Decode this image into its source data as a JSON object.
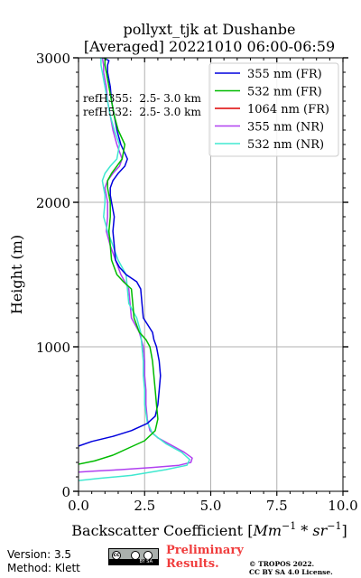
{
  "chart_data": {
    "type": "line",
    "title_line1": "pollyxt_tjk at Dushanbe",
    "title_line2": "[Averaged] 20221010 06:00-06:59",
    "xlabel": "Backscatter Coefficient [Mm⁻¹ * sr⁻¹]",
    "xlabel_parts": {
      "main": "Backscatter Coefficient [",
      "unit1": "Mm",
      "exp1": "−1",
      "mid": " * ",
      "unit2": "sr",
      "exp2": "−1",
      "end": "]"
    },
    "ylabel": "Height (m)",
    "xlim": [
      0,
      10
    ],
    "ylim": [
      0,
      3000
    ],
    "xticks": [
      0,
      2.5,
      5,
      7.5,
      10
    ],
    "xtick_labels": [
      "0.0",
      "2.5",
      "5.0",
      "7.5",
      "10.0"
    ],
    "yticks": [
      0,
      1000,
      2000,
      3000
    ],
    "ytick_labels": [
      "0",
      "1000",
      "2000",
      "3000"
    ],
    "grid": true,
    "legend_position": "top-right",
    "annotations": [
      "refH355:  2.5- 3.0 km",
      "refH532:  2.5- 3.0 km"
    ],
    "series": [
      {
        "name": "355 nm (FR)",
        "color": "#0000dd",
        "x": [
          -0.2,
          0.5,
          1.3,
          2.0,
          2.6,
          2.9,
          3.0,
          3.05,
          3.1,
          3.05,
          3.0,
          2.95,
          2.85,
          2.8,
          2.45,
          2.4,
          2.35,
          2.2,
          1.8,
          1.55,
          1.4,
          1.35,
          1.3,
          1.35,
          1.3,
          1.25,
          1.2,
          1.2,
          1.3,
          1.5,
          1.75,
          1.85,
          1.6,
          1.45,
          1.35,
          1.25,
          1.2,
          1.15,
          1.1,
          1.1,
          1.15,
          0.95,
          0.9
        ],
        "y": [
          300,
          345,
          380,
          420,
          470,
          520,
          600,
          700,
          800,
          900,
          950,
          1000,
          1050,
          1100,
          1200,
          1300,
          1400,
          1450,
          1500,
          1550,
          1600,
          1700,
          1800,
          1900,
          1950,
          2000,
          2050,
          2100,
          2150,
          2200,
          2250,
          2300,
          2400,
          2500,
          2600,
          2700,
          2800,
          2850,
          2900,
          2950,
          2980,
          3000,
          3000
        ]
      },
      {
        "name": "532 nm (FR)",
        "color": "#00bb00",
        "x": [
          -0.2,
          0.6,
          1.3,
          1.9,
          2.5,
          2.9,
          3.0,
          2.95,
          2.9,
          2.85,
          2.8,
          2.75,
          2.7,
          2.55,
          2.3,
          2.1,
          2.05,
          2.0,
          1.7,
          1.45,
          1.25,
          1.2,
          1.15,
          1.2,
          1.2,
          1.15,
          1.1,
          1.1,
          1.25,
          1.45,
          1.65,
          1.75,
          1.5,
          1.35,
          1.25,
          1.15,
          1.1,
          1.05,
          1.0,
          1.0,
          1.05,
          0.9
        ],
        "y": [
          180,
          210,
          250,
          300,
          350,
          420,
          500,
          600,
          700,
          800,
          900,
          950,
          1000,
          1050,
          1100,
          1200,
          1300,
          1400,
          1450,
          1500,
          1600,
          1700,
          1800,
          1900,
          2000,
          2050,
          2100,
          2150,
          2200,
          2250,
          2300,
          2400,
          2500,
          2600,
          2700,
          2800,
          2850,
          2900,
          2950,
          2980,
          3000,
          3000
        ]
      },
      {
        "name": "1064 nm (FR)",
        "color": "#dd0000",
        "x": [],
        "y": []
      },
      {
        "name": "355 nm (NR)",
        "color": "#b040f0",
        "x": [
          -0.2,
          0.6,
          1.6,
          2.8,
          3.8,
          4.25,
          4.3,
          4.0,
          3.5,
          3.0,
          2.7,
          2.6,
          2.55,
          2.55,
          2.5,
          2.5,
          2.45,
          2.3,
          2.0,
          1.95,
          1.9,
          1.6,
          1.4,
          1.2,
          1.05,
          1.1,
          1.1,
          1.05,
          1.0,
          1.1,
          1.3,
          1.55,
          1.65,
          1.45,
          1.3,
          1.2,
          1.1,
          1.05,
          1.0,
          0.95,
          0.95,
          0.9
        ],
        "y": [
          130,
          140,
          150,
          165,
          180,
          200,
          230,
          270,
          320,
          370,
          420,
          500,
          600,
          700,
          800,
          900,
          1000,
          1100,
          1200,
          1300,
          1400,
          1500,
          1600,
          1700,
          1800,
          1900,
          2000,
          2050,
          2100,
          2150,
          2200,
          2250,
          2300,
          2400,
          2500,
          2600,
          2700,
          2800,
          2850,
          2900,
          2950,
          3000
        ]
      },
      {
        "name": "532 nm (NR)",
        "color": "#40e8d0",
        "x": [
          -0.2,
          0.8,
          2.0,
          3.3,
          4.1,
          4.2,
          3.9,
          3.3,
          2.8,
          2.6,
          2.5,
          2.5,
          2.45,
          2.45,
          2.4,
          2.35,
          2.2,
          1.9,
          1.85,
          1.8,
          1.5,
          1.3,
          1.1,
          0.95,
          1.0,
          1.0,
          0.95,
          0.9,
          1.0,
          1.2,
          1.45,
          1.55,
          1.35,
          1.2,
          1.1,
          1.0,
          0.95,
          0.9,
          0.85,
          0.85,
          0.8
        ],
        "y": [
          70,
          90,
          110,
          150,
          180,
          220,
          270,
          330,
          400,
          480,
          600,
          700,
          800,
          900,
          1000,
          1100,
          1200,
          1300,
          1400,
          1500,
          1600,
          1700,
          1800,
          1900,
          2000,
          2050,
          2100,
          2150,
          2200,
          2250,
          2300,
          2400,
          2500,
          2600,
          2700,
          2800,
          2850,
          2900,
          2950,
          3000,
          3000
        ]
      }
    ]
  },
  "footer": {
    "version": "Version: 3.5",
    "method": "Method: Klett",
    "preliminary_line1": "Preliminary",
    "preliminary_line2": "Results.",
    "copyright_line1": "© TROPOS 2022.",
    "copyright_line2": "CC BY SA 4.0 License.",
    "cc_badge_text": "BY   SA"
  }
}
